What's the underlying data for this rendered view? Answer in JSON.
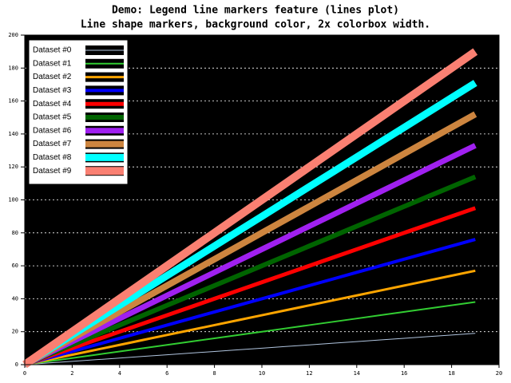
{
  "chart_data": {
    "type": "line",
    "title": "Demo: Legend line markers feature (lines plot)",
    "subtitle": "Line shape markers, background color, 2x colorbox width.",
    "x": [
      0,
      1,
      2,
      3,
      4,
      5,
      6,
      7,
      8,
      9,
      10,
      11,
      12,
      13,
      14,
      15,
      16,
      17,
      18,
      19
    ],
    "series": [
      {
        "name": "Dataset #0",
        "color": "#b0c4de",
        "values": [
          0,
          1,
          2,
          3,
          4,
          5,
          6,
          7,
          8,
          9,
          10,
          11,
          12,
          13,
          14,
          15,
          16,
          17,
          18,
          19
        ]
      },
      {
        "name": "Dataset #1",
        "color": "#32cd32",
        "values": [
          0,
          2,
          4,
          6,
          8,
          10,
          12,
          14,
          16,
          18,
          20,
          22,
          24,
          26,
          28,
          30,
          32,
          34,
          36,
          38
        ]
      },
      {
        "name": "Dataset #2",
        "color": "#ffa500",
        "values": [
          0,
          3,
          6,
          9,
          12,
          15,
          18,
          21,
          24,
          27,
          30,
          33,
          36,
          39,
          42,
          45,
          48,
          51,
          54,
          57
        ]
      },
      {
        "name": "Dataset #3",
        "color": "#0000ff",
        "values": [
          0,
          4,
          8,
          12,
          16,
          20,
          24,
          28,
          32,
          36,
          40,
          44,
          48,
          52,
          56,
          60,
          64,
          68,
          72,
          76
        ]
      },
      {
        "name": "Dataset #4",
        "color": "#ff0000",
        "values": [
          0,
          5,
          10,
          15,
          20,
          25,
          30,
          35,
          40,
          45,
          50,
          55,
          60,
          65,
          70,
          75,
          80,
          85,
          90,
          95
        ]
      },
      {
        "name": "Dataset #5",
        "color": "#006400",
        "values": [
          0,
          6,
          12,
          18,
          24,
          30,
          36,
          42,
          48,
          54,
          60,
          66,
          72,
          78,
          84,
          90,
          96,
          102,
          108,
          114
        ]
      },
      {
        "name": "Dataset #6",
        "color": "#a020f0",
        "values": [
          0,
          7,
          14,
          21,
          28,
          35,
          42,
          49,
          56,
          63,
          70,
          77,
          84,
          91,
          98,
          105,
          112,
          119,
          126,
          133
        ]
      },
      {
        "name": "Dataset #7",
        "color": "#cd853f",
        "values": [
          0,
          8,
          16,
          24,
          32,
          40,
          48,
          56,
          64,
          72,
          80,
          88,
          96,
          104,
          112,
          120,
          128,
          136,
          144,
          152
        ]
      },
      {
        "name": "Dataset #8",
        "color": "#00ffff",
        "values": [
          0,
          9,
          18,
          27,
          36,
          45,
          54,
          63,
          72,
          81,
          90,
          99,
          108,
          117,
          126,
          135,
          144,
          153,
          162,
          171
        ]
      },
      {
        "name": "Dataset #9",
        "color": "#fa8072",
        "values": [
          0,
          10,
          20,
          30,
          40,
          50,
          60,
          70,
          80,
          90,
          100,
          110,
          120,
          130,
          140,
          150,
          160,
          170,
          180,
          190
        ]
      }
    ],
    "xlim": [
      0,
      20
    ],
    "xticks": [
      0,
      2,
      4,
      6,
      8,
      10,
      12,
      14,
      16,
      18,
      20
    ],
    "ylim": [
      0,
      200
    ],
    "yticks": [
      0,
      20,
      40,
      60,
      80,
      100,
      120,
      140,
      160,
      180,
      200
    ],
    "grid": true,
    "legend": "top-left",
    "background": "#000000"
  }
}
